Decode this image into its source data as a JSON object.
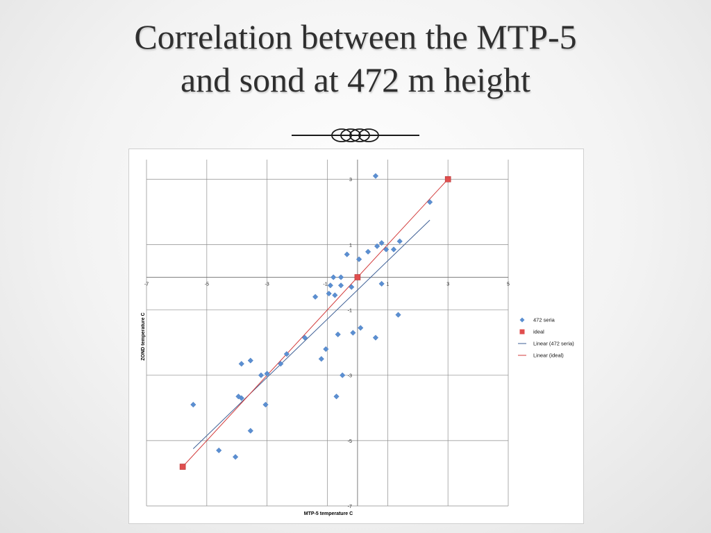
{
  "slide": {
    "title_line1": "Correlation between the MTP-5",
    "title_line2": "and sond at 472 m height"
  },
  "chart_data": {
    "type": "scatter",
    "title": "",
    "xlabel": "MTP-5 temperature C",
    "ylabel": "ZOND temperature C",
    "xlim": [
      -7,
      5
    ],
    "ylim": [
      -7,
      3.6
    ],
    "x_ticks": [
      -7,
      -5,
      -3,
      -1,
      1,
      3,
      5
    ],
    "y_ticks": [
      -7,
      -5,
      -3,
      -1,
      1,
      3
    ],
    "grid": true,
    "legend_position": "right",
    "colors": {
      "seria": "#5b8fd1",
      "ideal": "#e04e4e",
      "linear_seria": "#3d5f95",
      "linear_ideal": "#d23a3a"
    },
    "series": [
      {
        "name": "472 seria",
        "points": [
          [
            0.6,
            3.1
          ],
          [
            2.4,
            2.3
          ],
          [
            1.4,
            1.1
          ],
          [
            0.8,
            1.05
          ],
          [
            0.65,
            0.95
          ],
          [
            0.95,
            0.85
          ],
          [
            1.2,
            0.85
          ],
          [
            0.35,
            0.78
          ],
          [
            -0.35,
            0.7
          ],
          [
            0.05,
            0.55
          ],
          [
            -0.8,
            0.0
          ],
          [
            -0.55,
            0.0
          ],
          [
            -0.55,
            -0.25
          ],
          [
            -0.9,
            -0.25
          ],
          [
            -0.2,
            -0.3
          ],
          [
            -0.95,
            -0.5
          ],
          [
            -0.75,
            -0.55
          ],
          [
            -1.4,
            -0.6
          ],
          [
            0.8,
            -0.2
          ],
          [
            1.35,
            -1.15
          ],
          [
            -0.65,
            -1.75
          ],
          [
            -0.15,
            -1.7
          ],
          [
            0.1,
            -1.55
          ],
          [
            0.6,
            -1.85
          ],
          [
            -1.75,
            -1.85
          ],
          [
            -1.05,
            -2.2
          ],
          [
            -1.2,
            -2.5
          ],
          [
            -2.35,
            -2.35
          ],
          [
            -2.55,
            -2.65
          ],
          [
            -3.0,
            -2.95
          ],
          [
            -3.2,
            -3.0
          ],
          [
            -3.55,
            -2.55
          ],
          [
            -3.85,
            -2.65
          ],
          [
            -0.5,
            -3.0
          ],
          [
            -0.7,
            -3.65
          ],
          [
            -3.85,
            -3.7
          ],
          [
            -3.95,
            -3.65
          ],
          [
            -3.05,
            -3.9
          ],
          [
            -5.45,
            -3.9
          ],
          [
            -3.55,
            -4.7
          ],
          [
            -4.6,
            -5.3
          ],
          [
            -4.05,
            -5.5
          ]
        ]
      },
      {
        "name": "ideal",
        "points": [
          [
            -5.8,
            -5.8
          ],
          [
            0,
            0
          ],
          [
            3,
            3
          ]
        ]
      }
    ],
    "trendlines": [
      {
        "name": "Linear (472 seria)",
        "from": [
          -5.45,
          -5.25
        ],
        "to": [
          2.4,
          1.75
        ]
      },
      {
        "name": "Linear (ideal)",
        "from": [
          -5.8,
          -5.8
        ],
        "to": [
          3,
          3
        ]
      }
    ],
    "legend": [
      "472 seria",
      "ideal",
      "Linear (472 seria)",
      "Linear (ideal)"
    ]
  }
}
